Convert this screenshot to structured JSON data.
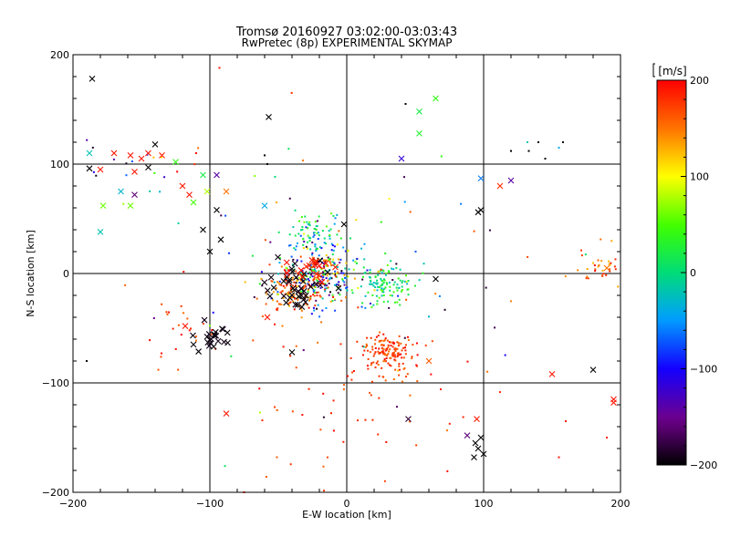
{
  "chart_data": {
    "type": "scatter",
    "title": "Tromsø 20160927 03:02:00-03:03:43",
    "subtitle": "RwPretec (8p) EXPERIMENTAL SKYMAP",
    "xlabel": "E-W location [km]",
    "ylabel": "N-S location [km]",
    "xlim": [
      -200,
      200
    ],
    "ylim": [
      -200,
      200
    ],
    "xticks": [
      -200,
      -100,
      0,
      100,
      200
    ],
    "yticks": [
      -200,
      -100,
      0,
      100,
      200
    ],
    "grid": true,
    "colorbar": {
      "label": "[m/s]",
      "range": [
        -200,
        200
      ],
      "ticks": [
        200,
        100,
        0,
        -100,
        -200
      ]
    },
    "clusters": [
      {
        "name": "center-mixed",
        "x": -20,
        "y": 0,
        "sx": 14,
        "sy": 14,
        "n": 260,
        "vmin": -200,
        "vmax": 200,
        "marker": "dot"
      },
      {
        "name": "southwest-red",
        "x": -40,
        "y": -18,
        "sx": 12,
        "sy": 10,
        "n": 120,
        "vmin": 120,
        "vmax": 200,
        "marker": "dot"
      },
      {
        "name": "east-green",
        "x": 25,
        "y": -10,
        "sx": 12,
        "sy": 9,
        "n": 110,
        "vmin": -40,
        "vmax": 60,
        "marker": "dot"
      },
      {
        "name": "north-cyan",
        "x": -25,
        "y": 35,
        "sx": 10,
        "sy": 10,
        "n": 70,
        "vmin": -80,
        "vmax": 60,
        "marker": "dot"
      },
      {
        "name": "south-red-blob",
        "x": 30,
        "y": -72,
        "sx": 10,
        "sy": 8,
        "n": 150,
        "vmin": 150,
        "vmax": 200,
        "marker": "dot"
      },
      {
        "name": "south-scatter",
        "x": 10,
        "y": -110,
        "sx": 45,
        "sy": 40,
        "n": 60,
        "vmin": 150,
        "vmax": 200,
        "marker": "dot"
      },
      {
        "name": "east-edge",
        "x": 185,
        "y": 5,
        "sx": 8,
        "sy": 10,
        "n": 35,
        "vmin": 120,
        "vmax": 200,
        "marker": "dot"
      },
      {
        "name": "upper-left-mix",
        "x": -150,
        "y": 95,
        "sx": 25,
        "sy": 12,
        "n": 20,
        "vmin": -200,
        "vmax": 200,
        "marker": "dot"
      },
      {
        "name": "left-mid",
        "x": -120,
        "y": -60,
        "sx": 20,
        "sy": 20,
        "n": 25,
        "vmin": 150,
        "vmax": 200,
        "marker": "dot"
      },
      {
        "name": "wide-background",
        "x": 0,
        "y": 0,
        "sx": 70,
        "sy": 60,
        "n": 90,
        "vmin": -200,
        "vmax": 200,
        "marker": "dot"
      },
      {
        "name": "x-center",
        "x": -35,
        "y": -12,
        "sx": 14,
        "sy": 12,
        "n": 40,
        "vmin": -200,
        "vmax": -190,
        "marker": "x"
      },
      {
        "name": "x-center-red",
        "x": -20,
        "y": 3,
        "sx": 10,
        "sy": 8,
        "n": 16,
        "vmin": 180,
        "vmax": 200,
        "marker": "x"
      },
      {
        "name": "x-lower-left",
        "x": -97,
        "y": -57,
        "sx": 6,
        "sy": 6,
        "n": 22,
        "vmin": -200,
        "vmax": -190,
        "marker": "x"
      }
    ],
    "x_markers": [
      {
        "x": -186,
        "y": 178,
        "v": -200
      },
      {
        "x": -57,
        "y": 143,
        "v": -200
      },
      {
        "x": -188,
        "y": 96,
        "v": -200
      },
      {
        "x": -140,
        "y": 118,
        "v": -200
      },
      {
        "x": -145,
        "y": 97,
        "v": -200
      },
      {
        "x": -100,
        "y": 20,
        "v": -200
      },
      {
        "x": -92,
        "y": 31,
        "v": -200
      },
      {
        "x": -105,
        "y": 40,
        "v": -200
      },
      {
        "x": -95,
        "y": 58,
        "v": -200
      },
      {
        "x": -188,
        "y": 110,
        "v": -20
      },
      {
        "x": -165,
        "y": 75,
        "v": -30
      },
      {
        "x": -178,
        "y": 62,
        "v": 60
      },
      {
        "x": -158,
        "y": 62,
        "v": 60
      },
      {
        "x": -125,
        "y": 102,
        "v": 40
      },
      {
        "x": -112,
        "y": 65,
        "v": 50
      },
      {
        "x": -102,
        "y": 75,
        "v": 80
      },
      {
        "x": -180,
        "y": 95,
        "v": 190
      },
      {
        "x": -170,
        "y": 110,
        "v": 190
      },
      {
        "x": -158,
        "y": 108,
        "v": 190
      },
      {
        "x": -150,
        "y": 105,
        "v": 190
      },
      {
        "x": -155,
        "y": 93,
        "v": 190
      },
      {
        "x": -145,
        "y": 110,
        "v": 190
      },
      {
        "x": -135,
        "y": 108,
        "v": 190
      },
      {
        "x": -120,
        "y": 80,
        "v": 190
      },
      {
        "x": -115,
        "y": 72,
        "v": 190
      },
      {
        "x": -88,
        "y": 75,
        "v": 150
      },
      {
        "x": -95,
        "y": 90,
        "v": -140
      },
      {
        "x": -105,
        "y": 90,
        "v": 20
      },
      {
        "x": -155,
        "y": 72,
        "v": -160
      },
      {
        "x": -180,
        "y": 38,
        "v": -20
      },
      {
        "x": -60,
        "y": 62,
        "v": -40
      },
      {
        "x": -88,
        "y": -128,
        "v": 190
      },
      {
        "x": -58,
        "y": -40,
        "v": 190
      },
      {
        "x": -118,
        "y": -48,
        "v": 190
      },
      {
        "x": -40,
        "y": -72,
        "v": -200
      },
      {
        "x": -2,
        "y": 45,
        "v": -200
      },
      {
        "x": 65,
        "y": 160,
        "v": 40
      },
      {
        "x": 53,
        "y": 148,
        "v": 20
      },
      {
        "x": 53,
        "y": 128,
        "v": 30
      },
      {
        "x": 40,
        "y": 105,
        "v": -120
      },
      {
        "x": 98,
        "y": 87,
        "v": -60
      },
      {
        "x": 98,
        "y": 58,
        "v": -200
      },
      {
        "x": 96,
        "y": 56,
        "v": -200
      },
      {
        "x": 120,
        "y": 85,
        "v": -140
      },
      {
        "x": 112,
        "y": 80,
        "v": 180
      },
      {
        "x": 65,
        "y": -5,
        "v": -200
      },
      {
        "x": 60,
        "y": -80,
        "v": 160
      },
      {
        "x": 45,
        "y": -133,
        "v": -180
      },
      {
        "x": 95,
        "y": -133,
        "v": 190
      },
      {
        "x": 88,
        "y": -148,
        "v": -160
      },
      {
        "x": 98,
        "y": -150,
        "v": -200
      },
      {
        "x": 94,
        "y": -155,
        "v": -200
      },
      {
        "x": 96,
        "y": -160,
        "v": -200
      },
      {
        "x": 100,
        "y": -165,
        "v": -200
      },
      {
        "x": 93,
        "y": -168,
        "v": -200
      },
      {
        "x": 150,
        "y": -92,
        "v": 190
      },
      {
        "x": 180,
        "y": -88,
        "v": -200
      },
      {
        "x": 195,
        "y": -115,
        "v": 190
      },
      {
        "x": 195,
        "y": -118,
        "v": 190
      },
      {
        "x": 190,
        "y": 5,
        "v": 150
      }
    ],
    "sparse_points": [
      {
        "x": -93,
        "y": 188,
        "v": 190
      },
      {
        "x": 43,
        "y": 155,
        "v": -200
      },
      {
        "x": 132,
        "y": 120,
        "v": -20
      },
      {
        "x": 140,
        "y": 120,
        "v": -200
      },
      {
        "x": 158,
        "y": 120,
        "v": -200
      },
      {
        "x": 120,
        "y": 112,
        "v": -200
      },
      {
        "x": 155,
        "y": 115,
        "v": -40
      },
      {
        "x": 133,
        "y": 112,
        "v": -200
      },
      {
        "x": 145,
        "y": 105,
        "v": -200
      },
      {
        "x": -58,
        "y": 100,
        "v": -200
      },
      {
        "x": -60,
        "y": 108,
        "v": -200
      },
      {
        "x": -190,
        "y": -80,
        "v": -200
      },
      {
        "x": -75,
        "y": -200,
        "v": 190
      },
      {
        "x": 155,
        "y": -168,
        "v": 190
      },
      {
        "x": 160,
        "y": -135,
        "v": 190
      },
      {
        "x": 190,
        "y": -150,
        "v": 190
      }
    ]
  }
}
